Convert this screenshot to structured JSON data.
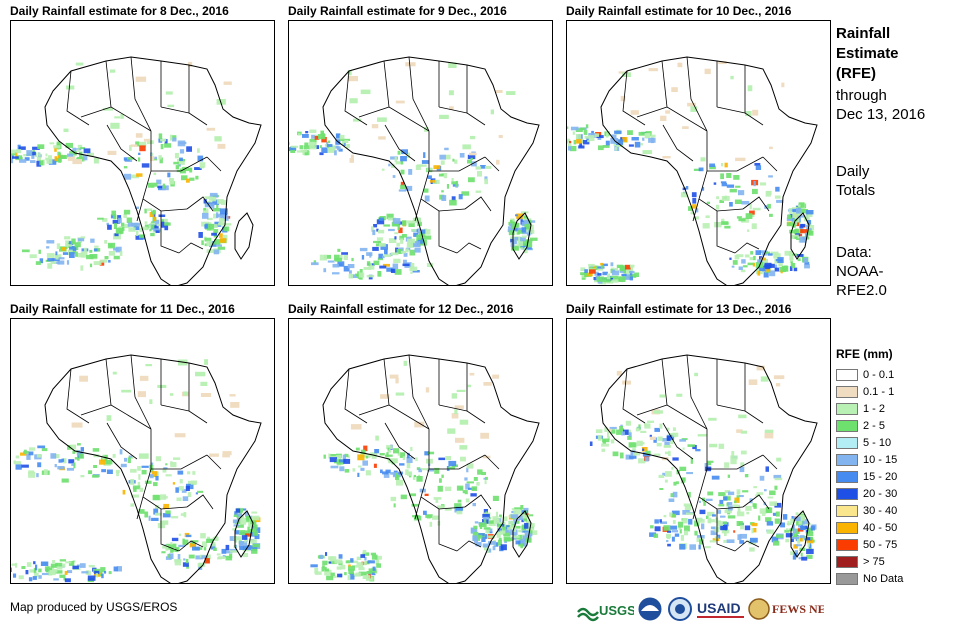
{
  "panels": [
    {
      "title": "Daily Rainfall estimate for 8 Dec., 2016"
    },
    {
      "title": "Daily Rainfall estimate for 9 Dec., 2016"
    },
    {
      "title": "Daily Rainfall estimate for 10 Dec., 2016"
    },
    {
      "title": "Daily Rainfall estimate for 11 Dec., 2016"
    },
    {
      "title": "Daily Rainfall estimate for 12 Dec., 2016"
    },
    {
      "title": "Daily Rainfall estimate for 13 Dec., 2016"
    }
  ],
  "sidebar": {
    "title_line1": "Rainfall",
    "title_line2": "Estimate",
    "title_line3": "(RFE)",
    "through_line1": "through",
    "through_line2": "Dec 13, 2016",
    "totals_line1": "Daily",
    "totals_line2": "Totals",
    "data_line1": "Data:",
    "data_line2": "NOAA-",
    "data_line3": "RFE2.0"
  },
  "legend": {
    "title": "RFE (mm)",
    "items": [
      {
        "label": "0 - 0.1",
        "color": "#ffffff"
      },
      {
        "label": "0.1 - 1",
        "color": "#f0dcc0"
      },
      {
        "label": "1 - 2",
        "color": "#b9f0b4"
      },
      {
        "label": "2 - 5",
        "color": "#6ee06e"
      },
      {
        "label": "5 - 10",
        "color": "#b4eef5"
      },
      {
        "label": "10 - 15",
        "color": "#82b4f0"
      },
      {
        "label": "15 - 20",
        "color": "#468cf0"
      },
      {
        "label": "20 - 30",
        "color": "#1e50e6"
      },
      {
        "label": "30 - 40",
        "color": "#fae68c"
      },
      {
        "label": "40 - 50",
        "color": "#fab400"
      },
      {
        "label": "50 - 75",
        "color": "#fa3c00"
      },
      {
        "label": "> 75",
        "color": "#a01e1e"
      },
      {
        "label": "No Data",
        "color": "#999999"
      }
    ]
  },
  "credit": "Map produced by USGS/EROS",
  "logos": {
    "usgs": "USGS",
    "noaa": "NOAA",
    "usaid": "USAID",
    "fewsnet": "FEWS NET"
  }
}
